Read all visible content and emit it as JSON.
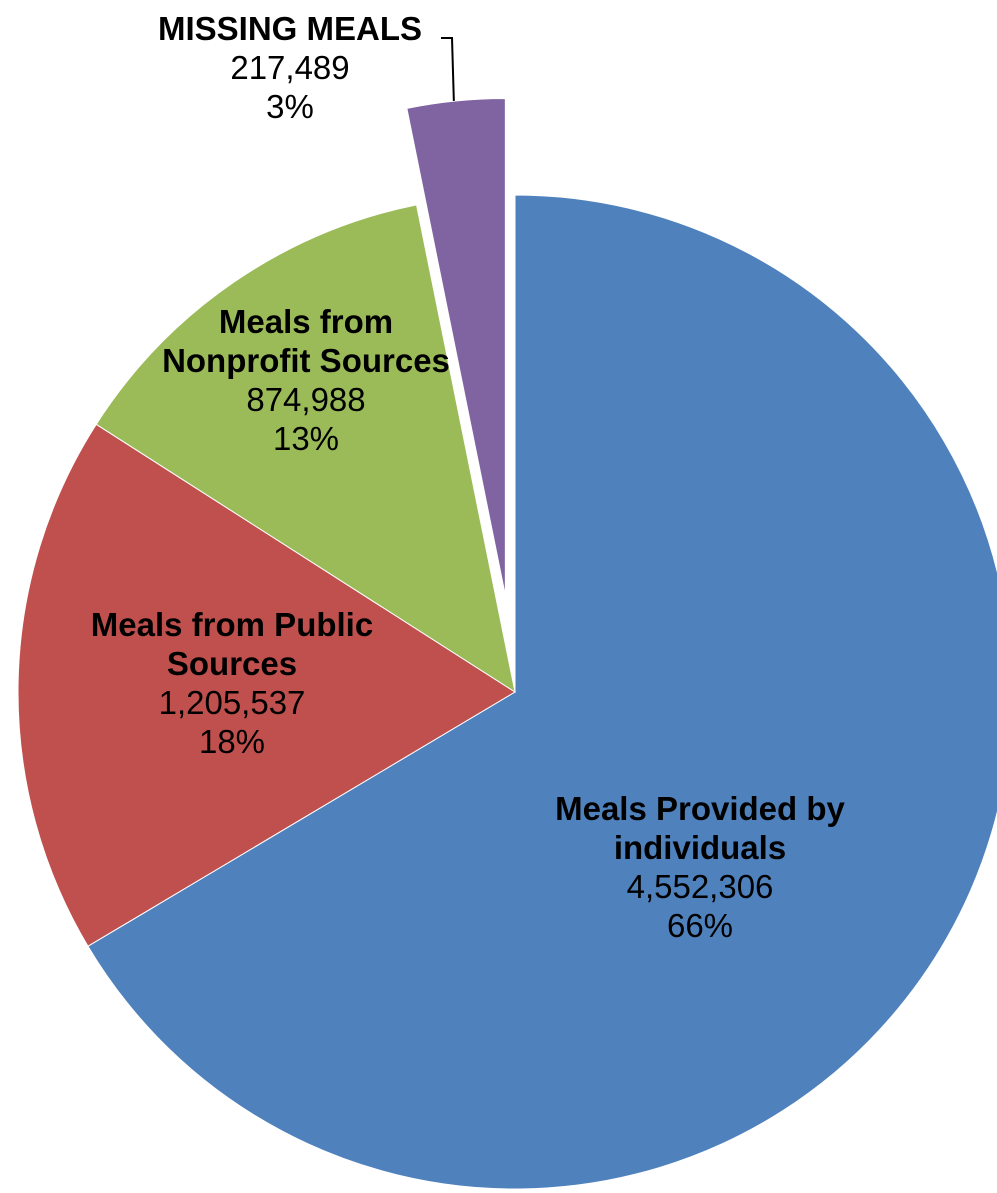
{
  "chart_data": {
    "type": "pie",
    "title": "",
    "slices": [
      {
        "name_lines": [
          "Meals Provided by",
          "individuals"
        ],
        "value": 4552306,
        "value_label": "4,552,306",
        "percent_label": "66%",
        "color": "#4F81BD",
        "exploded": false
      },
      {
        "name_lines": [
          "Meals from Public",
          "Sources"
        ],
        "value": 1205537,
        "value_label": "1,205,537",
        "percent_label": "18%",
        "color": "#C0504D",
        "exploded": false
      },
      {
        "name_lines": [
          "Meals from",
          "Nonprofit Sources"
        ],
        "value": 874988,
        "value_label": "874,988",
        "percent_label": "13%",
        "color": "#9BBB59",
        "exploded": false
      },
      {
        "name_lines": [
          "MISSING MEALS"
        ],
        "value": 217489,
        "value_label": "217,489",
        "percent_label": "3%",
        "color": "#8064A2",
        "exploded": true
      }
    ],
    "start_angle": "12 o'clock",
    "direction": "clockwise",
    "legend": "none"
  }
}
